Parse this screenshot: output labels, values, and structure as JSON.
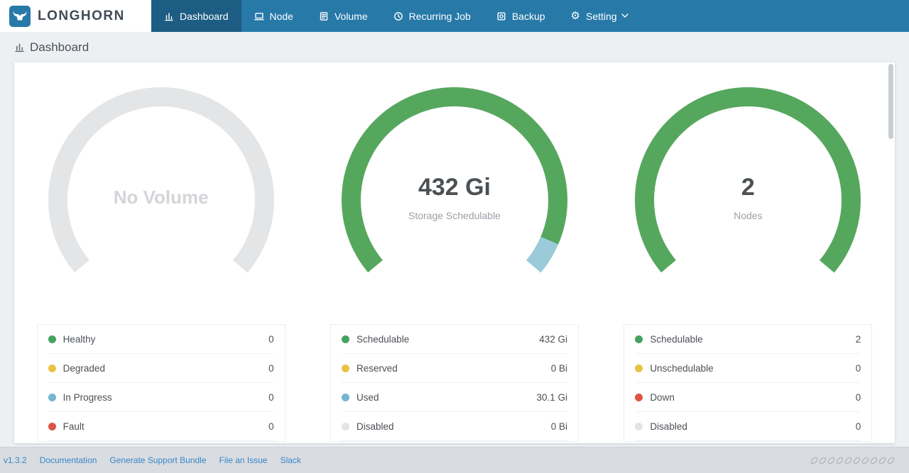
{
  "brand": {
    "name": "LONGHORN",
    "logo_icon": "longhorn-bull-icon"
  },
  "colors": {
    "header_bg": "#2779a8",
    "header_active_bg": "#1d5c83",
    "green": "#56a75e",
    "yellow": "#eac143",
    "red": "#dd5348",
    "light_blue": "#9bcbd9",
    "disabled_gray": "#e3e4e6",
    "link_blue": "#3787c9",
    "footer_bg": "#d9dce0"
  },
  "nav": {
    "items": [
      {
        "label": "Dashboard",
        "icon": "dashboard-icon",
        "active": true
      },
      {
        "label": "Node",
        "icon": "node-icon",
        "active": false
      },
      {
        "label": "Volume",
        "icon": "volume-icon",
        "active": false
      },
      {
        "label": "Recurring Job",
        "icon": "recurring-job-icon",
        "active": false
      },
      {
        "label": "Backup",
        "icon": "backup-icon",
        "active": false
      },
      {
        "label": "Setting",
        "icon": "setting-gear-icon",
        "has_caret": true,
        "active": false
      }
    ]
  },
  "page": {
    "title": "Dashboard",
    "title_icon": "bar-chart-icon"
  },
  "chart_data": [
    {
      "type": "gauge-donut",
      "name": "volume",
      "title": "No Volume",
      "subtitle": "",
      "arc_degrees": 260,
      "segments": [
        {
          "label": "empty",
          "color": "#e4e5e7",
          "fraction": 1
        }
      ],
      "legend": [
        {
          "label": "Healthy",
          "value": "0",
          "color": "#44a360"
        },
        {
          "label": "Degraded",
          "value": "0",
          "color": "#eac143"
        },
        {
          "label": "In Progress",
          "value": "0",
          "color": "#74b7cd"
        },
        {
          "label": "Fault",
          "value": "0",
          "color": "#dd5348"
        }
      ]
    },
    {
      "type": "gauge-donut",
      "name": "storage",
      "title": "432 Gi",
      "subtitle": "Storage Schedulable",
      "arc_degrees": 260,
      "segments": [
        {
          "label": "Schedulable",
          "color": "#56a75e",
          "fraction": 0.935
        },
        {
          "label": "Used",
          "color": "#9bcbd9",
          "fraction": 0.065
        }
      ],
      "legend": [
        {
          "label": "Schedulable",
          "value": "432 Gi",
          "color": "#44a360"
        },
        {
          "label": "Reserved",
          "value": "0 Bi",
          "color": "#eac143"
        },
        {
          "label": "Used",
          "value": "30.1 Gi",
          "color": "#74b7cd"
        },
        {
          "label": "Disabled",
          "value": "0 Bi",
          "color": "#e3e4e6"
        }
      ]
    },
    {
      "type": "gauge-donut",
      "name": "node",
      "title": "2",
      "subtitle": "Nodes",
      "arc_degrees": 260,
      "segments": [
        {
          "label": "Schedulable",
          "color": "#56a75e",
          "fraction": 1
        }
      ],
      "legend": [
        {
          "label": "Schedulable",
          "value": "2",
          "color": "#44a360"
        },
        {
          "label": "Unschedulable",
          "value": "0",
          "color": "#eac143"
        },
        {
          "label": "Down",
          "value": "0",
          "color": "#dd5348"
        },
        {
          "label": "Disabled",
          "value": "0",
          "color": "#e3e4e6"
        }
      ]
    }
  ],
  "footer": {
    "version": "v1.3.2",
    "links": [
      "Documentation",
      "Generate Support Bundle",
      "File an Issue",
      "Slack"
    ]
  }
}
